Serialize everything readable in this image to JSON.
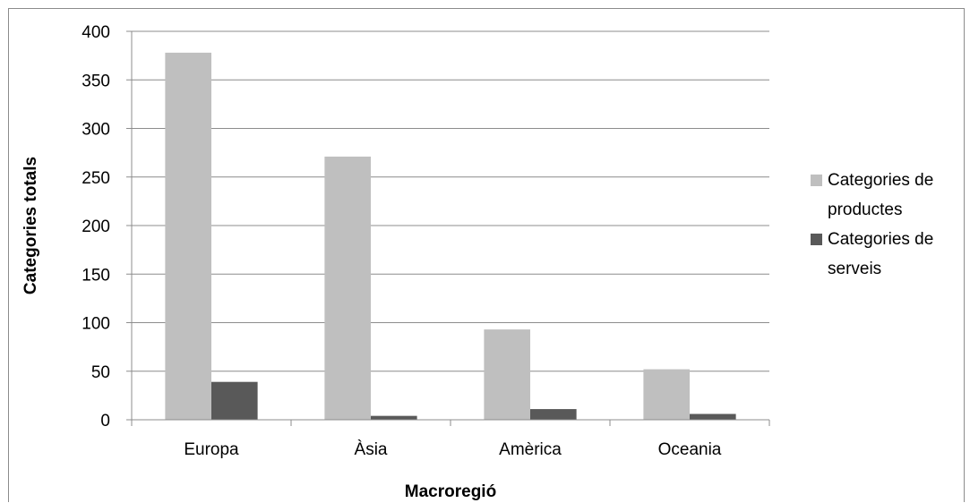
{
  "chart_data": {
    "type": "bar",
    "categories": [
      "Europa",
      "Àsia",
      "Amèrica",
      "Oceania"
    ],
    "series": [
      {
        "name": "Categories de productes",
        "legend_lines": [
          "Categories de",
          "productes"
        ],
        "color": "#bfbfbf",
        "values": [
          378,
          271,
          93,
          52
        ]
      },
      {
        "name": "Categories de serveis",
        "legend_lines": [
          "Categories de",
          "serveis"
        ],
        "color": "#595959",
        "values": [
          39,
          4,
          11,
          6
        ]
      }
    ],
    "xlabel": "Macroregió",
    "ylabel": "Categories totals",
    "ylim": [
      0,
      400
    ],
    "yticks": [
      0,
      50,
      100,
      150,
      200,
      250,
      300,
      350,
      400
    ],
    "grid": true,
    "legend_position": "right"
  }
}
